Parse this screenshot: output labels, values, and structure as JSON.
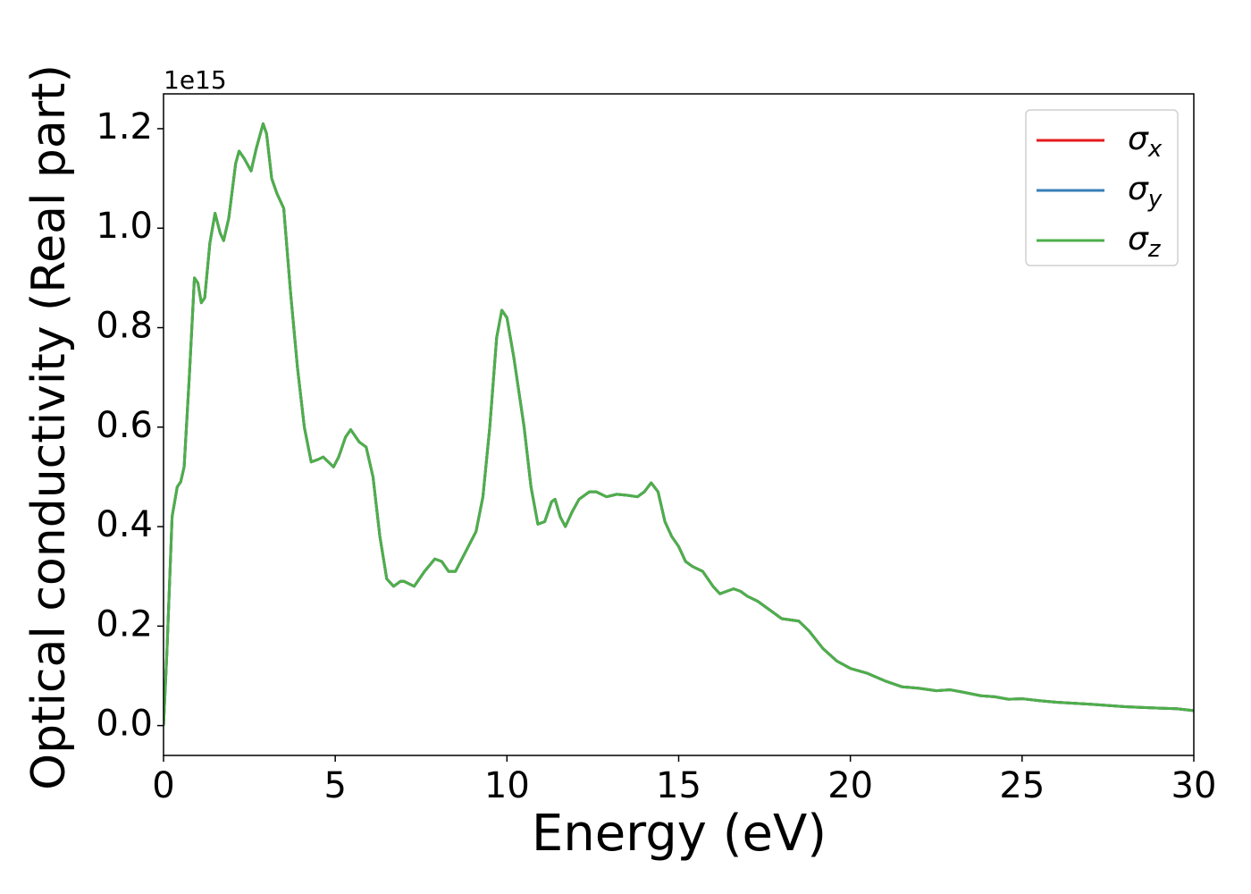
{
  "chart_data": {
    "type": "line",
    "xlabel": "Energy (eV)",
    "ylabel": "Optical conductivity (Real part)",
    "y_offset_label": "1e15",
    "x": [
      0,
      0.1,
      0.25,
      0.4,
      0.5,
      0.6,
      0.75,
      0.9,
      1.0,
      1.1,
      1.2,
      1.35,
      1.5,
      1.65,
      1.75,
      1.9,
      2.1,
      2.2,
      2.35,
      2.55,
      2.7,
      2.9,
      3.0,
      3.15,
      3.3,
      3.5,
      3.7,
      3.9,
      4.1,
      4.3,
      4.5,
      4.65,
      4.95,
      5.1,
      5.3,
      5.45,
      5.7,
      5.9,
      6.1,
      6.3,
      6.5,
      6.7,
      6.9,
      7.0,
      7.3,
      7.6,
      7.9,
      8.1,
      8.3,
      8.5,
      8.8,
      9.1,
      9.3,
      9.5,
      9.7,
      9.85,
      10.0,
      10.2,
      10.5,
      10.7,
      10.9,
      11.1,
      11.3,
      11.4,
      11.55,
      11.7,
      11.9,
      12.1,
      12.4,
      12.6,
      12.9,
      13.2,
      13.5,
      13.8,
      14.0,
      14.2,
      14.4,
      14.6,
      14.8,
      15.0,
      15.2,
      15.4,
      15.7,
      16.0,
      16.2,
      16.4,
      16.6,
      16.8,
      17.0,
      17.3,
      17.7,
      18.0,
      18.5,
      18.8,
      19.2,
      19.6,
      20.0,
      20.5,
      21.0,
      21.5,
      22.0,
      22.5,
      22.9,
      23.3,
      23.8,
      24.2,
      24.6,
      25.0,
      25.5,
      26.0,
      27.0,
      28.0,
      29.0,
      29.5,
      30.0
    ],
    "series": [
      {
        "name": "σx",
        "color": "#e41a1c",
        "values": [
          0.0,
          0.15,
          0.42,
          0.48,
          0.49,
          0.52,
          0.7,
          0.9,
          0.89,
          0.85,
          0.86,
          0.97,
          1.03,
          0.99,
          0.975,
          1.02,
          1.13,
          1.155,
          1.14,
          1.115,
          1.16,
          1.21,
          1.19,
          1.1,
          1.07,
          1.04,
          0.87,
          0.72,
          0.6,
          0.53,
          0.535,
          0.54,
          0.52,
          0.54,
          0.58,
          0.595,
          0.57,
          0.56,
          0.5,
          0.38,
          0.295,
          0.28,
          0.29,
          0.29,
          0.28,
          0.31,
          0.335,
          0.33,
          0.31,
          0.31,
          0.35,
          0.39,
          0.46,
          0.6,
          0.78,
          0.835,
          0.82,
          0.74,
          0.6,
          0.48,
          0.405,
          0.41,
          0.45,
          0.455,
          0.42,
          0.4,
          0.43,
          0.455,
          0.47,
          0.47,
          0.46,
          0.465,
          0.463,
          0.46,
          0.47,
          0.488,
          0.47,
          0.41,
          0.38,
          0.36,
          0.33,
          0.32,
          0.31,
          0.28,
          0.265,
          0.27,
          0.275,
          0.27,
          0.26,
          0.25,
          0.23,
          0.215,
          0.21,
          0.19,
          0.155,
          0.13,
          0.115,
          0.105,
          0.09,
          0.078,
          0.075,
          0.07,
          0.072,
          0.067,
          0.06,
          0.058,
          0.053,
          0.054,
          0.05,
          0.047,
          0.043,
          0.038,
          0.035,
          0.034,
          0.03
        ]
      },
      {
        "name": "σy",
        "color": "#377eb8",
        "values": [
          0.0,
          0.15,
          0.42,
          0.48,
          0.49,
          0.52,
          0.7,
          0.9,
          0.89,
          0.85,
          0.86,
          0.97,
          1.03,
          0.99,
          0.975,
          1.02,
          1.13,
          1.155,
          1.14,
          1.115,
          1.16,
          1.21,
          1.19,
          1.1,
          1.07,
          1.04,
          0.87,
          0.72,
          0.6,
          0.53,
          0.535,
          0.54,
          0.52,
          0.54,
          0.58,
          0.595,
          0.57,
          0.56,
          0.5,
          0.38,
          0.295,
          0.28,
          0.29,
          0.29,
          0.28,
          0.31,
          0.335,
          0.33,
          0.31,
          0.31,
          0.35,
          0.39,
          0.46,
          0.6,
          0.78,
          0.835,
          0.82,
          0.74,
          0.6,
          0.48,
          0.405,
          0.41,
          0.45,
          0.455,
          0.42,
          0.4,
          0.43,
          0.455,
          0.47,
          0.47,
          0.46,
          0.465,
          0.463,
          0.46,
          0.47,
          0.488,
          0.47,
          0.41,
          0.38,
          0.36,
          0.33,
          0.32,
          0.31,
          0.28,
          0.265,
          0.27,
          0.275,
          0.27,
          0.26,
          0.25,
          0.23,
          0.215,
          0.21,
          0.19,
          0.155,
          0.13,
          0.115,
          0.105,
          0.09,
          0.078,
          0.075,
          0.07,
          0.072,
          0.067,
          0.06,
          0.058,
          0.053,
          0.054,
          0.05,
          0.047,
          0.043,
          0.038,
          0.035,
          0.034,
          0.03
        ]
      },
      {
        "name": "σz",
        "color": "#4daf4a",
        "values": [
          0.0,
          0.15,
          0.42,
          0.48,
          0.49,
          0.52,
          0.7,
          0.9,
          0.89,
          0.85,
          0.86,
          0.97,
          1.03,
          0.99,
          0.975,
          1.02,
          1.13,
          1.155,
          1.14,
          1.115,
          1.16,
          1.21,
          1.19,
          1.1,
          1.07,
          1.04,
          0.87,
          0.72,
          0.6,
          0.53,
          0.535,
          0.54,
          0.52,
          0.54,
          0.58,
          0.595,
          0.57,
          0.56,
          0.5,
          0.38,
          0.295,
          0.28,
          0.29,
          0.29,
          0.28,
          0.31,
          0.335,
          0.33,
          0.31,
          0.31,
          0.35,
          0.39,
          0.46,
          0.6,
          0.78,
          0.835,
          0.82,
          0.74,
          0.6,
          0.48,
          0.405,
          0.41,
          0.45,
          0.455,
          0.42,
          0.4,
          0.43,
          0.455,
          0.47,
          0.47,
          0.46,
          0.465,
          0.463,
          0.46,
          0.47,
          0.488,
          0.47,
          0.41,
          0.38,
          0.36,
          0.33,
          0.32,
          0.31,
          0.28,
          0.265,
          0.27,
          0.275,
          0.27,
          0.26,
          0.25,
          0.23,
          0.215,
          0.21,
          0.19,
          0.155,
          0.13,
          0.115,
          0.105,
          0.09,
          0.078,
          0.075,
          0.07,
          0.072,
          0.067,
          0.06,
          0.058,
          0.053,
          0.054,
          0.05,
          0.047,
          0.043,
          0.038,
          0.035,
          0.034,
          0.03
        ]
      }
    ],
    "xlim": [
      0,
      30
    ],
    "xticks": [
      0,
      5,
      10,
      15,
      20,
      25,
      30
    ],
    "ylim": [
      -0.06,
      1.27
    ],
    "yticks": [
      {
        "value": 0,
        "label": "0.0"
      },
      0.2,
      0.4,
      0.6,
      0.8,
      {
        "value": 1,
        "label": "1.0"
      },
      1.2
    ],
    "legend": "upper right",
    "grid": false
  }
}
